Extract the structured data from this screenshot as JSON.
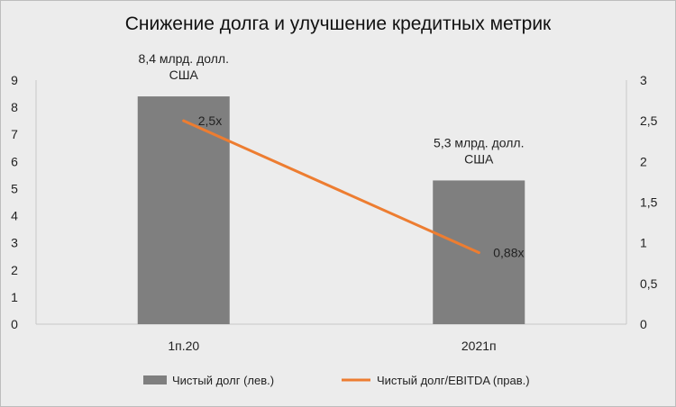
{
  "chart_data": {
    "type": "bar+line",
    "title": "Снижение долга и улучшение кредитных метрик",
    "categories": [
      "1п.20",
      "2021п"
    ],
    "bar_series": {
      "name": "Чистый долг (лев.)",
      "values": [
        8.4,
        5.3
      ],
      "labels": [
        [
          "8,4 млрд. долл.",
          "США"
        ],
        [
          "5,3 млрд. долл.",
          "США"
        ]
      ],
      "color": "#7f7f7f"
    },
    "line_series": {
      "name": "Чистый долг/EBITDA (прав.)",
      "values": [
        2.5,
        0.88
      ],
      "labels": [
        "2,5x",
        "0,88x"
      ],
      "color": "#ed7d31"
    },
    "y_left": {
      "min": 0,
      "max": 9,
      "ticks": [
        "0",
        "1",
        "2",
        "3",
        "4",
        "5",
        "6",
        "7",
        "8",
        "9"
      ]
    },
    "y_right": {
      "min": 0,
      "max": 3,
      "ticks": [
        "0",
        "0,5",
        "1",
        "1,5",
        "2",
        "2,5",
        "3"
      ]
    },
    "grid": false,
    "legend_position": "bottom"
  }
}
